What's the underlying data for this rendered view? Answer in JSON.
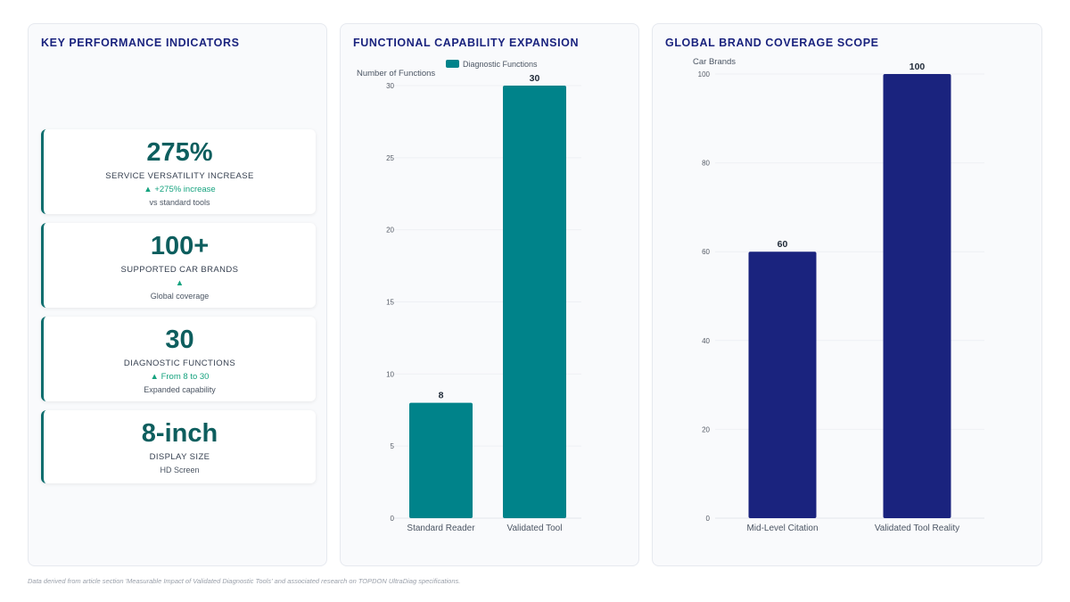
{
  "kpi_panel": {
    "title": "KEY PERFORMANCE INDICATORS",
    "cards": [
      {
        "value": "275%",
        "label": "SERVICE VERSATILITY INCREASE",
        "trend": "▲ +275% increase",
        "sub": "vs standard tools"
      },
      {
        "value": "100+",
        "label": "SUPPORTED CAR BRANDS",
        "trend": "▲",
        "sub": "Global coverage"
      },
      {
        "value": "30",
        "label": "DIAGNOSTIC FUNCTIONS",
        "trend": "▲ From 8 to 30",
        "sub": "Expanded capability"
      },
      {
        "value": "8-inch",
        "label": "DISPLAY SIZE",
        "trend": "",
        "sub": "HD Screen"
      }
    ]
  },
  "chart_data": [
    {
      "type": "bar",
      "title": "FUNCTIONAL CAPABILITY EXPANSION",
      "ylabel": "Number of Functions",
      "categories": [
        "Standard Reader",
        "Validated Tool"
      ],
      "series": [
        {
          "name": "Diagnostic Functions",
          "values": [
            8,
            30
          ]
        }
      ],
      "data_labels": [
        "8",
        "30"
      ],
      "yticks": [
        0,
        5,
        10,
        15,
        20,
        25,
        30
      ],
      "ylim": [
        0,
        30
      ],
      "legend": "top",
      "color": "#00838a"
    },
    {
      "type": "bar",
      "title": "GLOBAL BRAND COVERAGE SCOPE",
      "ylabel": "Car Brands",
      "categories": [
        "Mid-Level Citation",
        "Validated Tool Reality"
      ],
      "series": [
        {
          "values": [
            60,
            100
          ]
        }
      ],
      "data_labels": [
        "60",
        "100"
      ],
      "yticks": [
        0,
        20,
        40,
        60,
        80,
        100
      ],
      "ylim": [
        0,
        100
      ],
      "color": "#1a237e"
    }
  ],
  "footnote": "Data derived from article section 'Measurable Impact of Validated Diagnostic Tools' and associated research on TOPDON UltraDiag specifications."
}
